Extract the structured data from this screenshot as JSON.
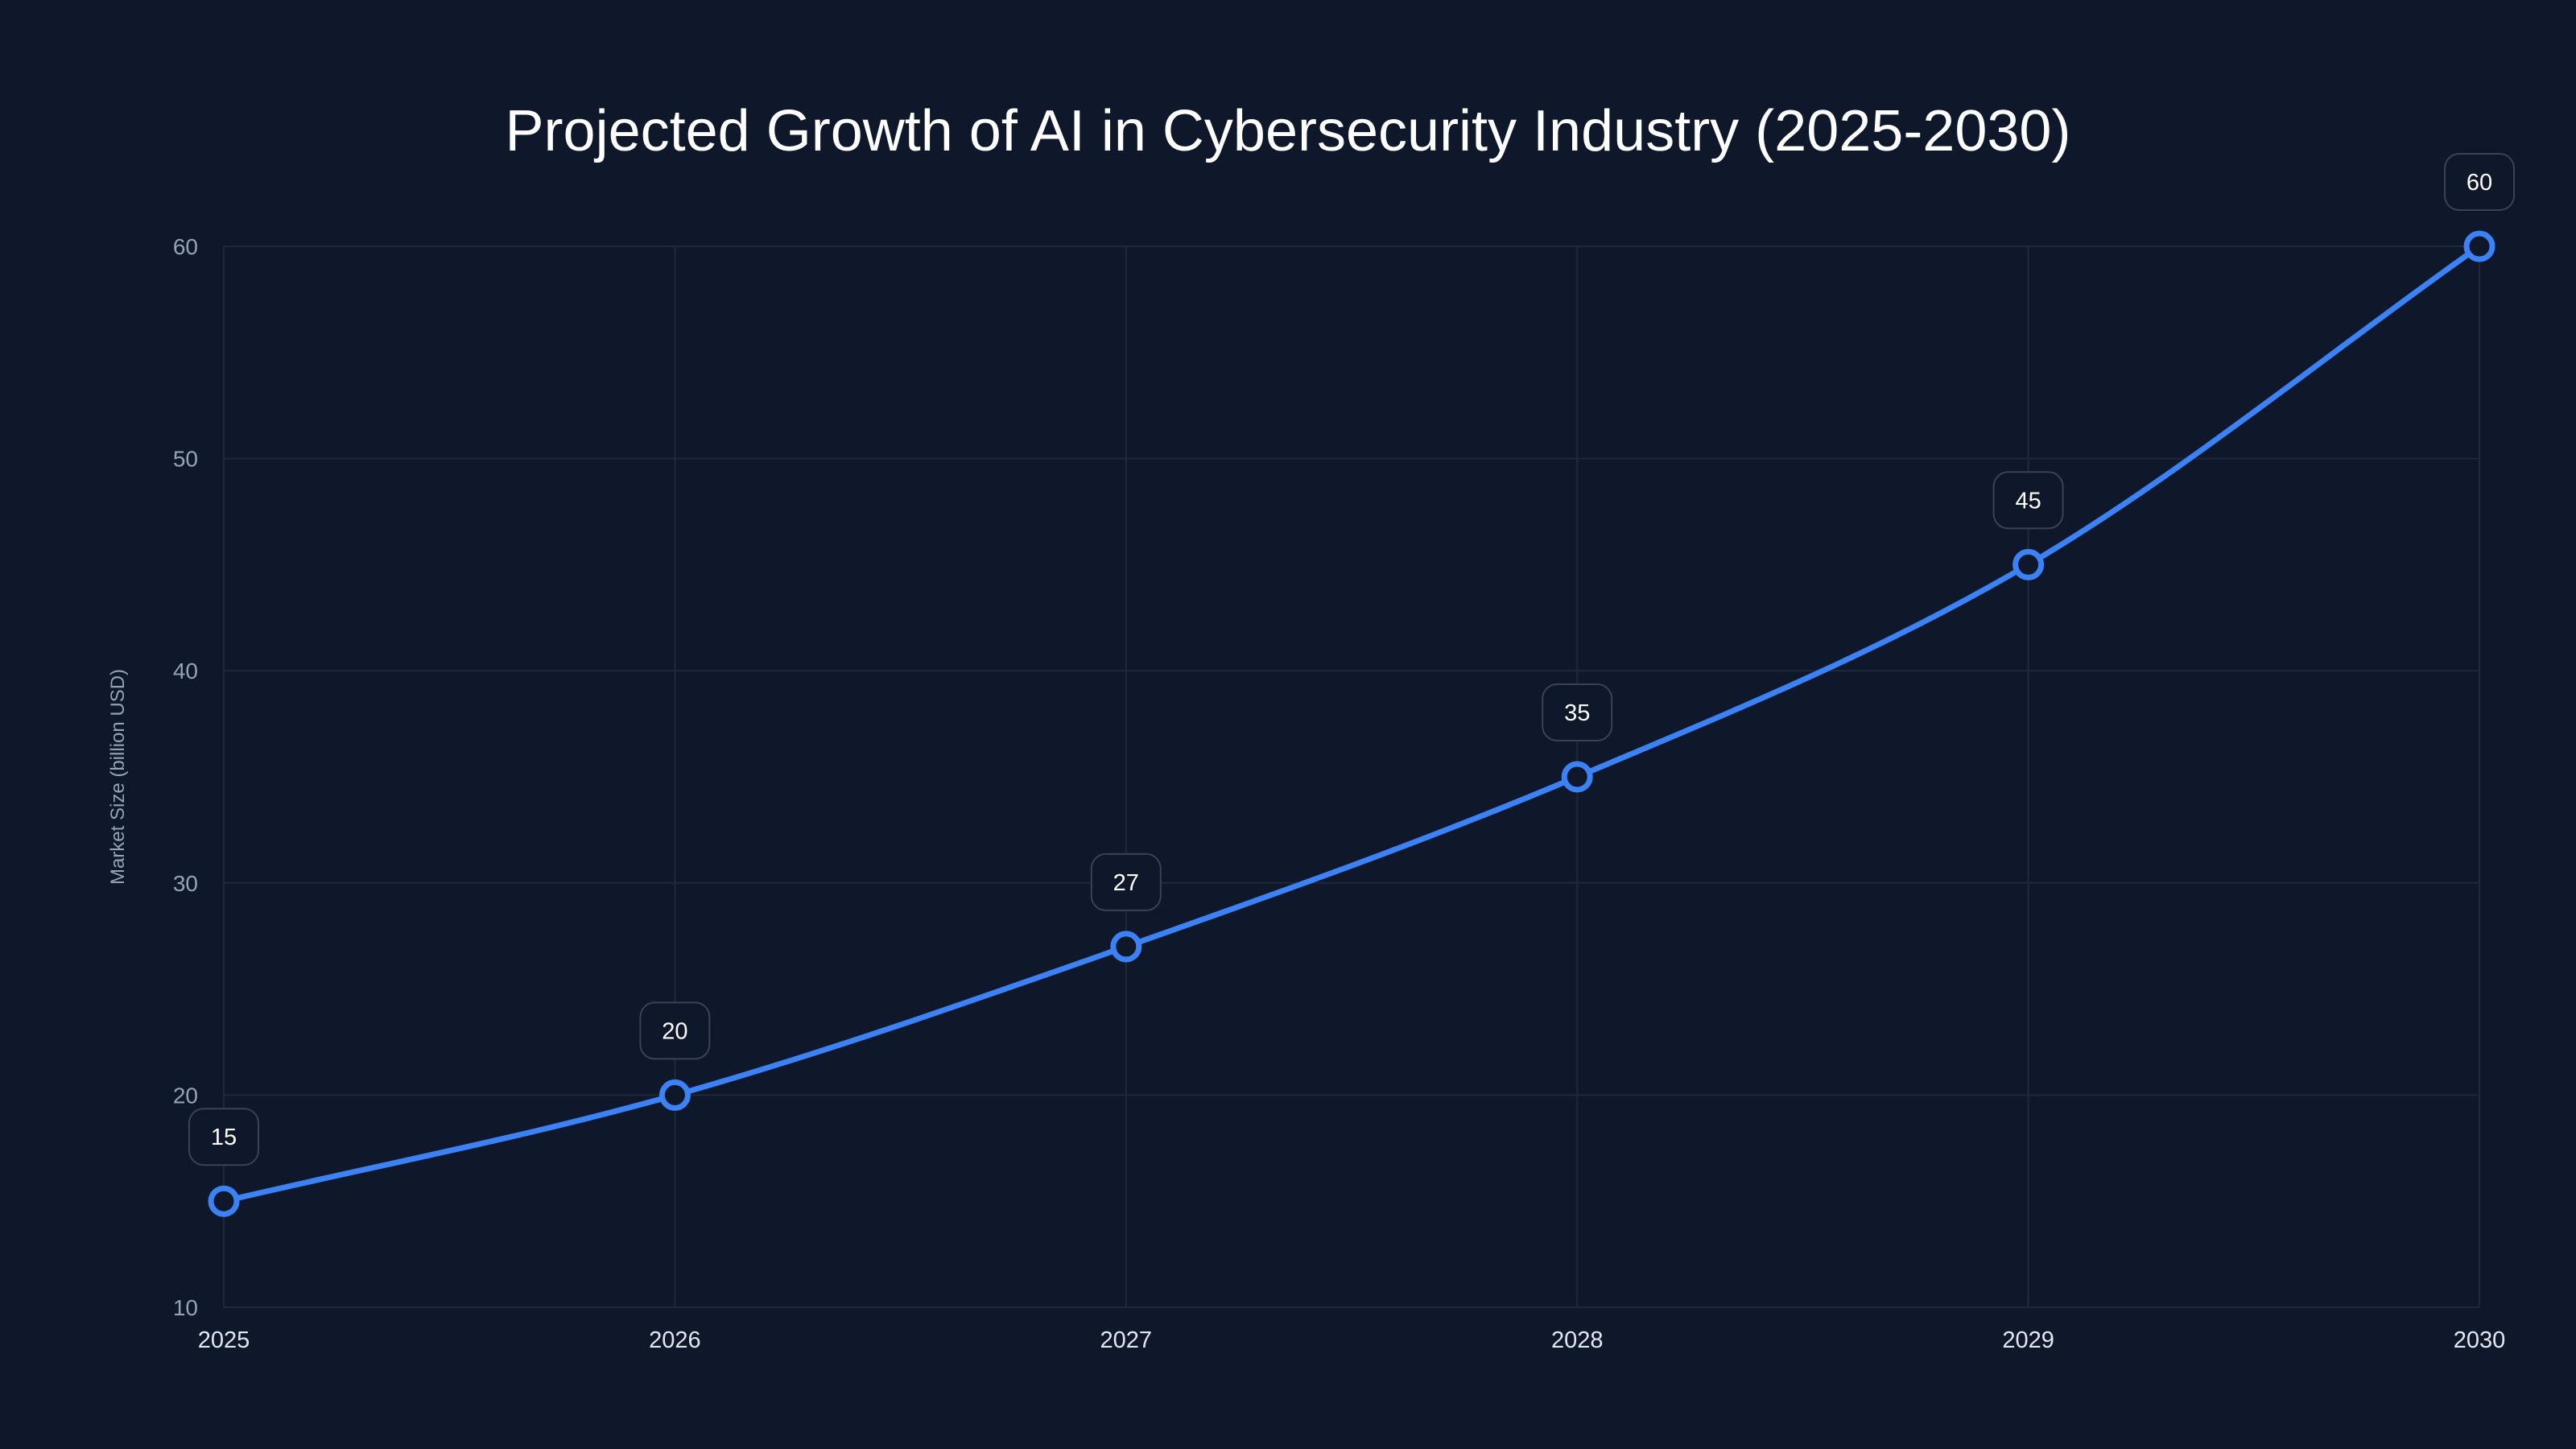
{
  "chart_data": {
    "type": "line",
    "title": "Projected Growth of AI in Cybersecurity Industry (2025-2030)",
    "xlabel": "",
    "ylabel": "Market Size (billion USD)",
    "categories": [
      "2025",
      "2026",
      "2027",
      "2028",
      "2029",
      "2030"
    ],
    "series": [
      {
        "name": "Market Size",
        "values": [
          15,
          20,
          27,
          35,
          45,
          60
        ],
        "color": "#3b82f6"
      }
    ],
    "ylim": [
      10,
      60
    ],
    "yticks": [
      10,
      20,
      30,
      40,
      50,
      60
    ],
    "grid": true,
    "smooth": true,
    "data_labels": true
  },
  "colors": {
    "background": "#0f172a",
    "grid": "#1e293b",
    "label_border": "#3a4356"
  }
}
